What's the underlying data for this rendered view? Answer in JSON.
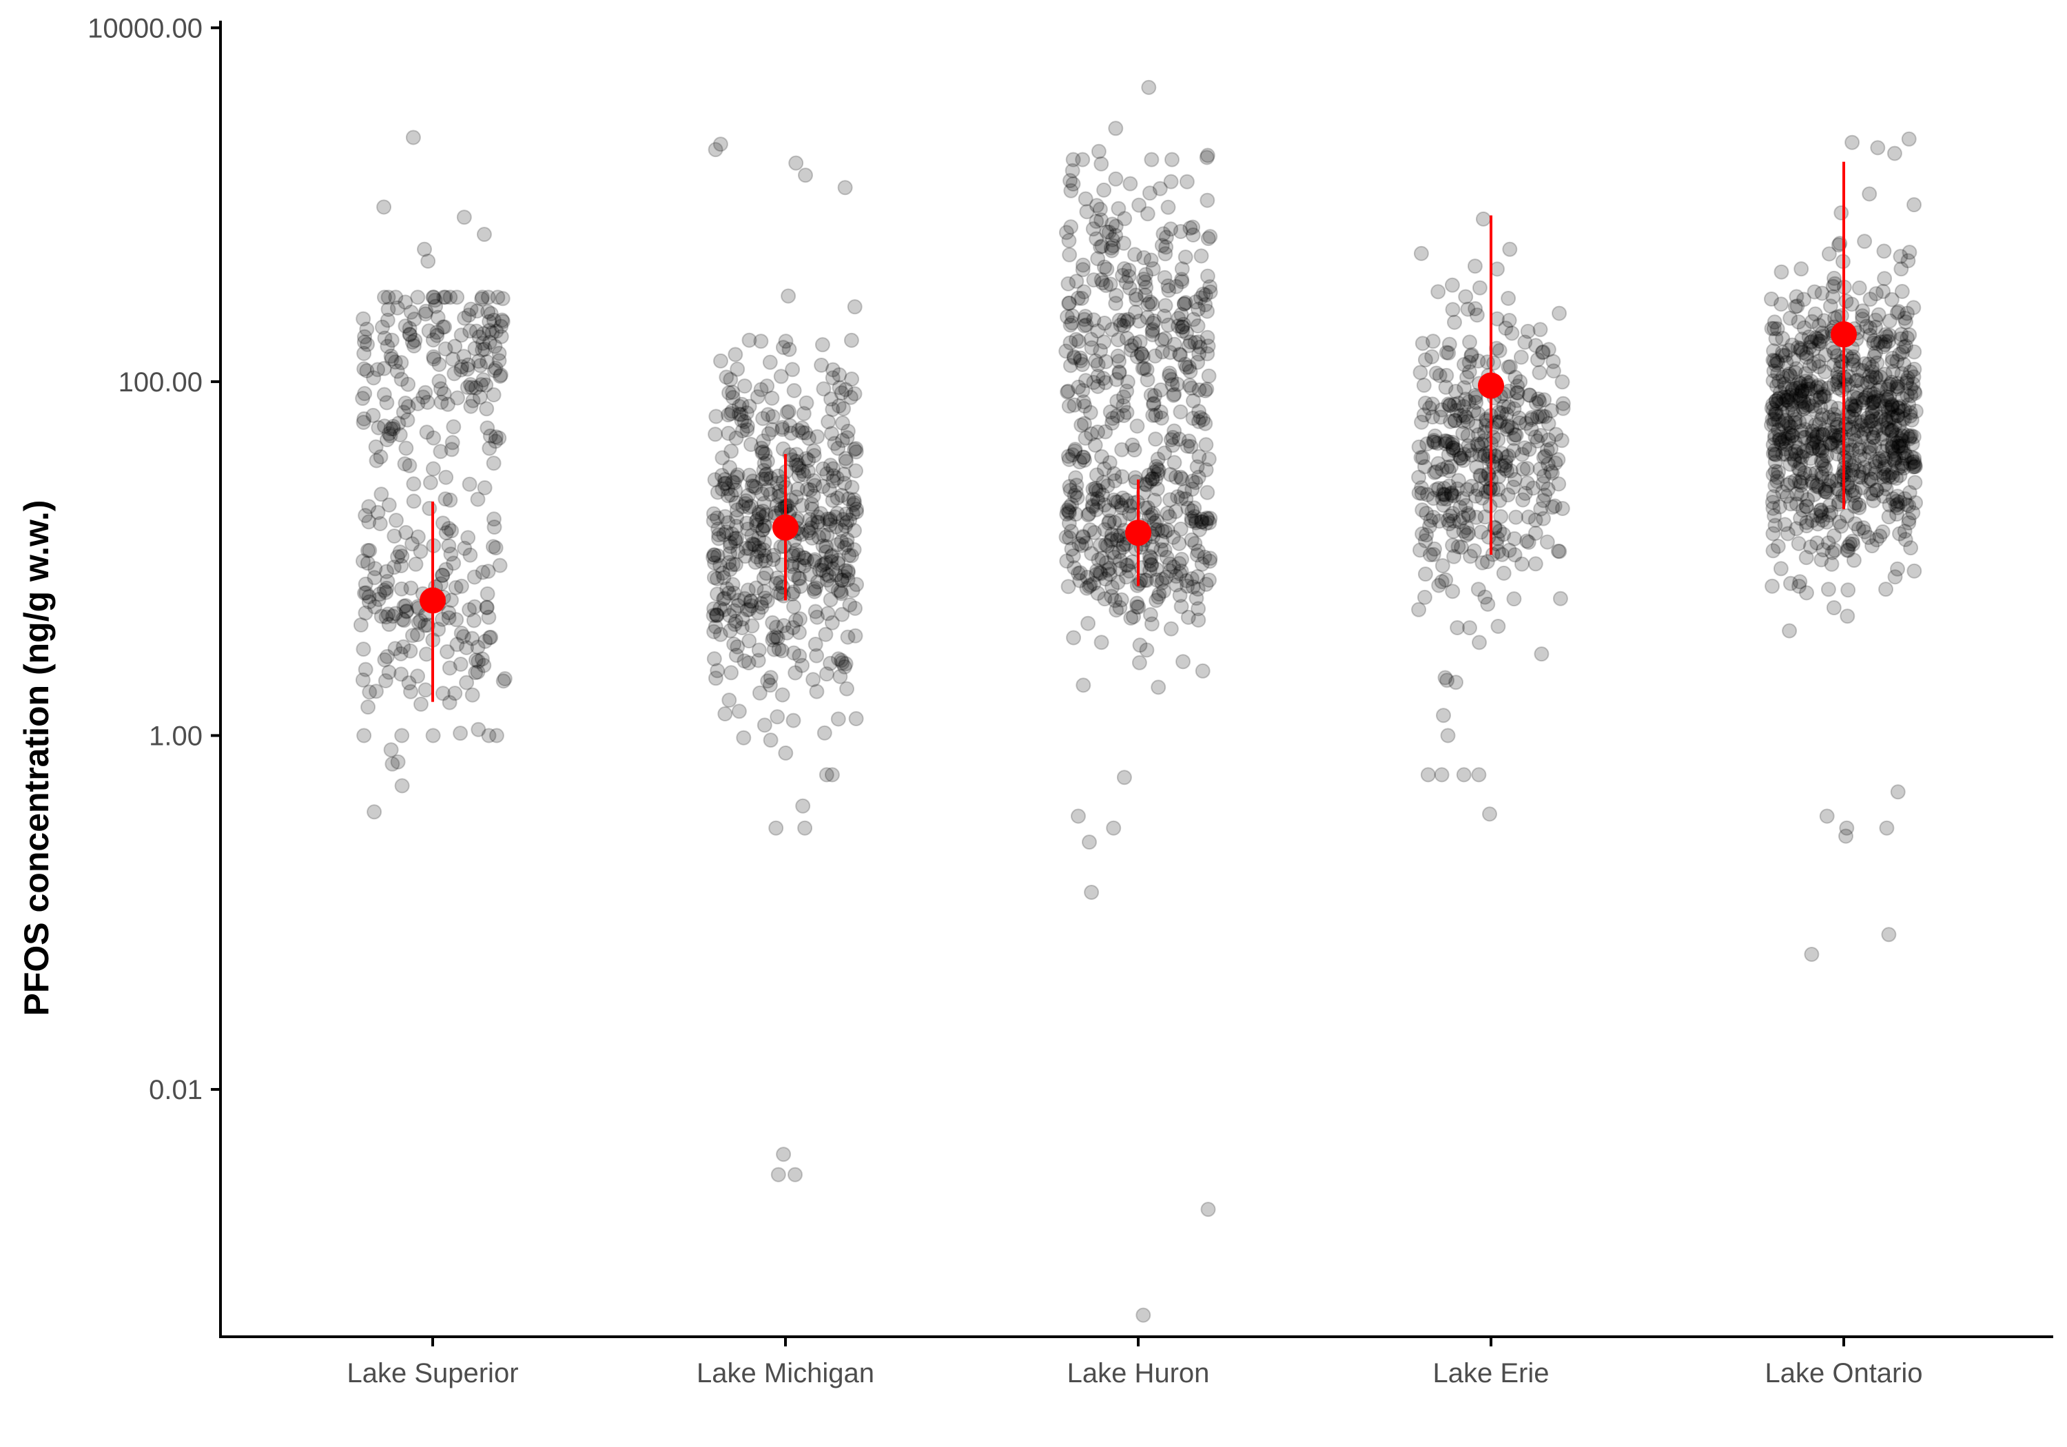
{
  "chart_data": {
    "type": "scatter",
    "title": "",
    "xlabel": "",
    "ylabel": "PFOS concentration (ng/g w.w.)",
    "yscale": "log10",
    "ylim": [
      0.0004,
      12000
    ],
    "y_ticks": [
      0.01,
      1,
      100,
      10000
    ],
    "y_tick_labels": [
      "0.01",
      "1.00",
      "100.00",
      "10000.00"
    ],
    "categories": [
      "Lake Superior",
      "Lake Michigan",
      "Lake Huron",
      "Lake Erie",
      "Lake Ontario"
    ],
    "grid": false,
    "legend": "none",
    "colors": {
      "points": "#000000",
      "point_alpha": 0.2,
      "summary": "#ff0000",
      "axis": "#000000"
    },
    "summary": [
      {
        "category": "Lake Superior",
        "center": 5.8,
        "low": 1.55,
        "high": 21
      },
      {
        "category": "Lake Michigan",
        "center": 15,
        "low": 5.8,
        "high": 39
      },
      {
        "category": "Lake Huron",
        "center": 14,
        "low": 7,
        "high": 28
      },
      {
        "category": "Lake Erie",
        "center": 95,
        "low": 10.5,
        "high": 870
      },
      {
        "category": "Lake Ontario",
        "center": 185,
        "low": 19,
        "high": 1750
      }
    ],
    "outliers": [
      {
        "category": "Lake Superior",
        "values": [
          2400,
          970,
          850,
          680,
          560,
          480,
          0.37,
          0.52,
          0.69,
          0.71,
          0.83
        ]
      },
      {
        "category": "Lake Michigan",
        "values": [
          2200,
          2050,
          1720,
          1470,
          1250,
          0.0033,
          0.0033,
          0.0043,
          0.3,
          0.3,
          0.4,
          0.6,
          0.6
        ]
      },
      {
        "category": "Lake Huron",
        "values": [
          4600,
          2700,
          2000,
          1900,
          1850,
          1700,
          1350,
          1200,
          0.0021,
          0.00053,
          0.13,
          0.25,
          0.3,
          0.35,
          0.58
        ]
      },
      {
        "category": "Lake Erie",
        "values": [
          830,
          560,
          530,
          450,
          0.36,
          0.6,
          0.6,
          0.6,
          0.6,
          1.0,
          1.3
        ]
      },
      {
        "category": "Lake Ontario",
        "values": [
          2350,
          2250,
          2100,
          1950,
          1150,
          1000,
          0.058,
          0.075,
          0.27,
          0.3,
          0.3,
          0.35,
          0.48
        ]
      }
    ],
    "bulk_distribution": [
      {
        "category": "Lake Superior",
        "n": 340,
        "modes": [
          {
            "weight": 0.5,
            "median": 120,
            "spread": 0.28
          },
          {
            "weight": 0.5,
            "median": 6,
            "spread": 0.38
          }
        ],
        "range": [
          1,
          300
        ]
      },
      {
        "category": "Lake Michigan",
        "n": 500,
        "modes": [
          {
            "weight": 1.0,
            "median": 15,
            "spread": 0.5
          }
        ],
        "range": [
          0.6,
          650
        ]
      },
      {
        "category": "Lake Huron",
        "n": 580,
        "modes": [
          {
            "weight": 0.5,
            "median": 200,
            "spread": 0.45
          },
          {
            "weight": 0.5,
            "median": 15,
            "spread": 0.3
          }
        ],
        "range": [
          1,
          1800
        ]
      },
      {
        "category": "Lake Erie",
        "n": 380,
        "modes": [
          {
            "weight": 1.0,
            "median": 40,
            "spread": 0.42
          }
        ],
        "range": [
          2,
          600
        ]
      },
      {
        "category": "Lake Ontario",
        "n": 760,
        "modes": [
          {
            "weight": 1.0,
            "median": 55,
            "spread": 0.38
          }
        ],
        "range": [
          1,
          900
        ]
      }
    ]
  }
}
